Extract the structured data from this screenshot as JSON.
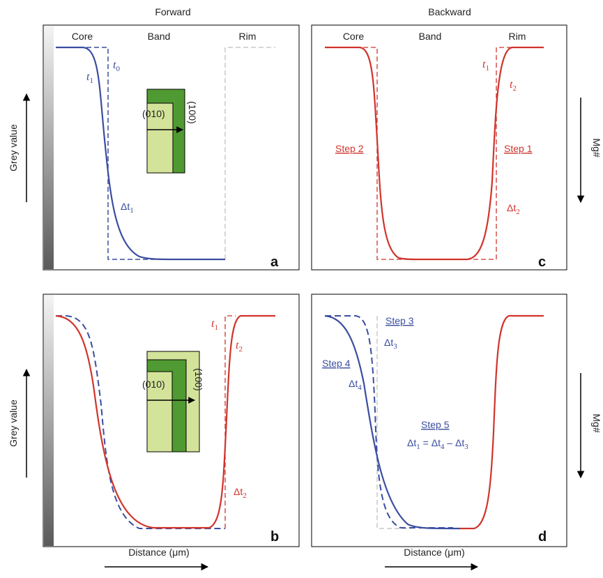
{
  "headers": {
    "forward": "Forward",
    "backward": "Backward"
  },
  "zones": {
    "core": "Core",
    "band": "Band",
    "rim": "Rim"
  },
  "axes": {
    "grey_value": "Grey value",
    "mg_number": "Mg#",
    "distance": "Distance (μm)"
  },
  "crystal": {
    "face_010": "(010)",
    "face_100": "(100)"
  },
  "panels": {
    "a": {
      "letter": "a",
      "t0": "t",
      "t0_sub": "0",
      "t1": "t",
      "t1_sub": "1",
      "dt1": "Δt",
      "dt1_sub": "1"
    },
    "b": {
      "letter": "b",
      "t1": "t",
      "t1_sub": "1",
      "t2": "t",
      "t2_sub": "2",
      "dt2": "Δt",
      "dt2_sub": "2"
    },
    "c": {
      "letter": "c",
      "t1": "t",
      "t1_sub": "1",
      "t2": "t",
      "t2_sub": "2",
      "step1": "Step 1",
      "step2": "Step 2",
      "dt2": "Δt",
      "dt2_sub": "2"
    },
    "d": {
      "letter": "d",
      "step3": "Step 3",
      "dt3": "Δt",
      "dt3_sub": "3",
      "step4": "Step 4",
      "dt4": "Δt",
      "dt4_sub": "4",
      "step5": "Step 5",
      "eq_a": "Δt",
      "eq_a_sub": "1",
      "eq_eq": " = ",
      "eq_b": "Δt",
      "eq_b_sub": "4",
      "eq_minus": " – ",
      "eq_c": "Δt",
      "eq_c_sub": "3"
    }
  },
  "colors": {
    "red": "#d0342c",
    "blue": "#3b4da0",
    "grey_dash": "#c8c8c8",
    "dark_green": "#4f9a32",
    "light_green": "#d3e39a"
  }
}
